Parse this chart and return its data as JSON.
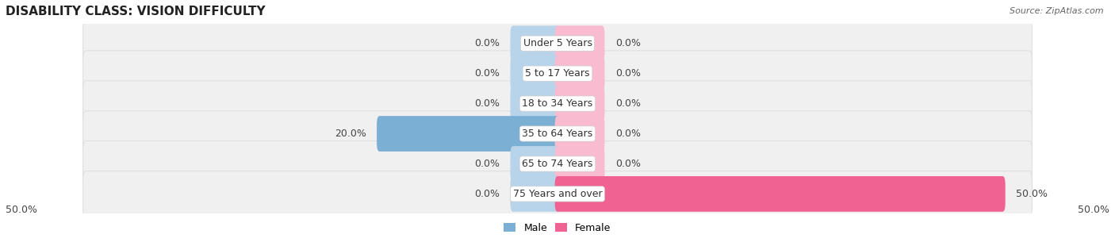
{
  "title": "DISABILITY CLASS: VISION DIFFICULTY",
  "source": "Source: ZipAtlas.com",
  "categories": [
    "Under 5 Years",
    "5 to 17 Years",
    "18 to 34 Years",
    "35 to 64 Years",
    "65 to 74 Years",
    "75 Years and over"
  ],
  "male_values": [
    0.0,
    0.0,
    0.0,
    20.0,
    0.0,
    0.0
  ],
  "female_values": [
    0.0,
    0.0,
    0.0,
    0.0,
    0.0,
    50.0
  ],
  "male_color": "#7bafd4",
  "male_stub_color": "#b8d4ea",
  "female_color": "#f06292",
  "female_stub_color": "#f8bbd0",
  "male_label": "Male",
  "female_label": "Female",
  "max_value": 50.0,
  "stub_value": 5.0,
  "title_fontsize": 11,
  "label_fontsize": 9,
  "value_fontsize": 9,
  "legend_fontsize": 9,
  "background_color": "#ffffff",
  "row_color": "#f0f0f0",
  "row_edge_color": "#e0e0e0"
}
